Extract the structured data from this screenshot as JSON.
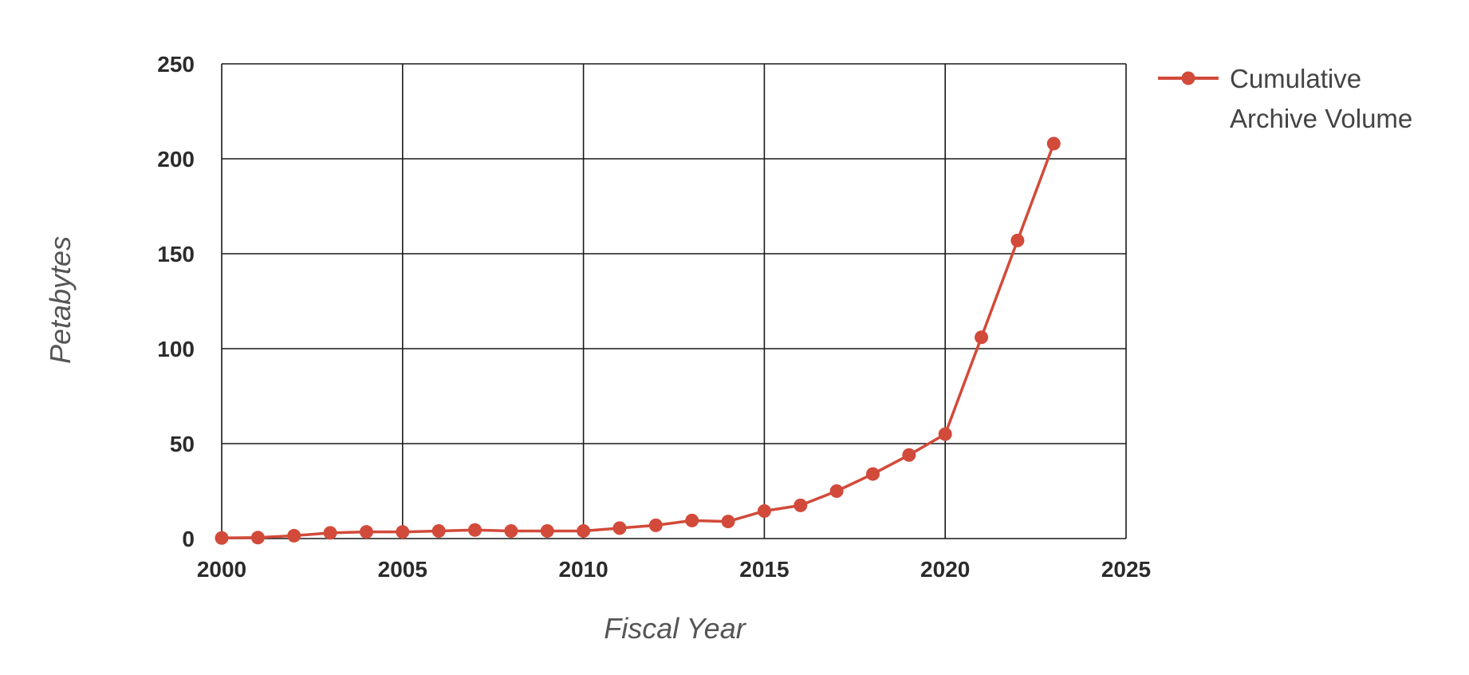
{
  "chart_data": {
    "type": "line",
    "title": "",
    "xlabel": "Fiscal Year",
    "ylabel": "Petabytes",
    "xlim": [
      2000,
      2025
    ],
    "ylim": [
      0,
      250
    ],
    "x_ticks": [
      "2000",
      "2005",
      "2010",
      "2015",
      "2020",
      "2025"
    ],
    "y_ticks": [
      "0",
      "50",
      "100",
      "150",
      "200",
      "250"
    ],
    "grid": true,
    "legend_position": "top-right",
    "legend_lines": [
      "Cumulative",
      "Archive Volume"
    ],
    "series": [
      {
        "name": "Cumulative Archive Volume",
        "color": "#d24a3a",
        "x": [
          2000,
          2001,
          2002,
          2003,
          2004,
          2005,
          2006,
          2007,
          2008,
          2009,
          2010,
          2011,
          2012,
          2013,
          2014,
          2015,
          2016,
          2017,
          2018,
          2019,
          2020,
          2021,
          2022,
          2023
        ],
        "y": [
          0.3,
          0.5,
          1.5,
          3,
          3.5,
          3.5,
          4,
          4.5,
          4,
          4,
          4,
          5.5,
          7,
          9.5,
          9,
          14.5,
          17.5,
          25,
          34,
          44,
          55,
          106,
          157,
          208
        ]
      }
    ]
  }
}
